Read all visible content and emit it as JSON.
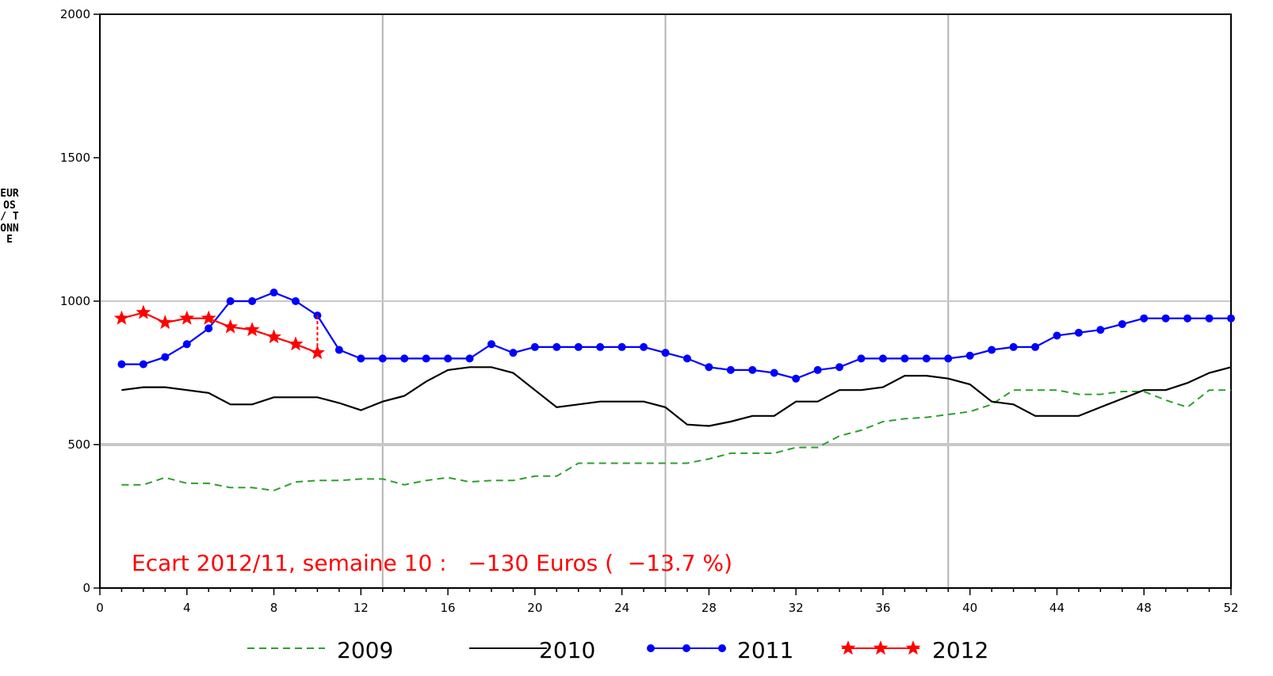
{
  "chart_data": {
    "type": "line",
    "ylabel": "EUROS / TONNE",
    "xlim": [
      0,
      52
    ],
    "ylim": [
      0,
      2000
    ],
    "xticks": [
      0,
      4,
      8,
      12,
      16,
      20,
      24,
      28,
      32,
      36,
      40,
      44,
      48,
      52
    ],
    "yticks": [
      0,
      500,
      1000,
      1500,
      2000
    ],
    "grid": {
      "vertical": [
        13,
        26,
        39
      ],
      "horizontal": [
        500,
        1000
      ]
    },
    "legend": "bottom",
    "annotation": "Ecart 2012/11, semaine 10 :   −130 Euros (  −13.7 %)",
    "series": [
      {
        "name": "2009",
        "color": "#2ca02c",
        "style": "dashed",
        "x": [
          1,
          2,
          3,
          4,
          5,
          6,
          7,
          8,
          9,
          10,
          11,
          12,
          13,
          14,
          15,
          16,
          17,
          18,
          19,
          20,
          21,
          22,
          23,
          24,
          25,
          26,
          27,
          28,
          29,
          30,
          31,
          32,
          33,
          34,
          35,
          36,
          37,
          38,
          39,
          40,
          41,
          42,
          43,
          44,
          45,
          46,
          47,
          48,
          49,
          50,
          51,
          52
        ],
        "values": [
          360,
          360,
          385,
          365,
          365,
          350,
          350,
          340,
          370,
          375,
          375,
          380,
          380,
          360,
          375,
          385,
          370,
          375,
          375,
          390,
          390,
          435,
          435,
          435,
          435,
          435,
          435,
          450,
          470,
          470,
          470,
          490,
          490,
          530,
          550,
          580,
          590,
          595,
          605,
          615,
          640,
          690,
          690,
          690,
          675,
          675,
          685,
          685,
          655,
          630,
          690,
          690
        ]
      },
      {
        "name": "2010",
        "color": "#000000",
        "style": "solid",
        "x": [
          1,
          2,
          3,
          4,
          5,
          6,
          7,
          8,
          9,
          10,
          11,
          12,
          13,
          14,
          15,
          16,
          17,
          18,
          19,
          20,
          21,
          22,
          23,
          24,
          25,
          26,
          27,
          28,
          29,
          30,
          31,
          32,
          33,
          34,
          35,
          36,
          37,
          38,
          39,
          40,
          41,
          42,
          43,
          44,
          45,
          46,
          47,
          48,
          49,
          50,
          51,
          52
        ],
        "values": [
          690,
          700,
          700,
          690,
          680,
          640,
          640,
          665,
          665,
          665,
          645,
          620,
          650,
          670,
          720,
          760,
          770,
          770,
          750,
          690,
          630,
          640,
          650,
          650,
          650,
          630,
          570,
          565,
          580,
          600,
          600,
          650,
          650,
          690,
          690,
          700,
          740,
          740,
          730,
          710,
          650,
          640,
          600,
          600,
          600,
          630,
          660,
          690,
          690,
          715,
          750,
          770
        ]
      },
      {
        "name": "2011",
        "color": "#0000ff",
        "style": "solid-dot",
        "x": [
          1,
          2,
          3,
          4,
          5,
          6,
          7,
          8,
          9,
          10,
          11,
          12,
          13,
          14,
          15,
          16,
          17,
          18,
          19,
          20,
          21,
          22,
          23,
          24,
          25,
          26,
          27,
          28,
          29,
          30,
          31,
          32,
          33,
          34,
          35,
          36,
          37,
          38,
          39,
          40,
          41,
          42,
          43,
          44,
          45,
          46,
          47,
          48,
          49,
          50,
          51,
          52
        ],
        "values": [
          780,
          780,
          805,
          850,
          905,
          1000,
          1000,
          1030,
          1000,
          950,
          830,
          800,
          800,
          800,
          800,
          800,
          800,
          850,
          820,
          840,
          840,
          840,
          840,
          840,
          840,
          820,
          800,
          770,
          760,
          760,
          750,
          730,
          760,
          770,
          800,
          800,
          800,
          800,
          800,
          810,
          830,
          840,
          840,
          880,
          890,
          900,
          920,
          940,
          940,
          940,
          940,
          940
        ]
      },
      {
        "name": "2012",
        "color": "#ff0000",
        "style": "solid-star",
        "x": [
          1,
          2,
          3,
          4,
          5,
          6,
          7,
          8,
          9,
          10
        ],
        "values": [
          940,
          960,
          925,
          940,
          940,
          910,
          900,
          875,
          850,
          820
        ]
      }
    ]
  }
}
